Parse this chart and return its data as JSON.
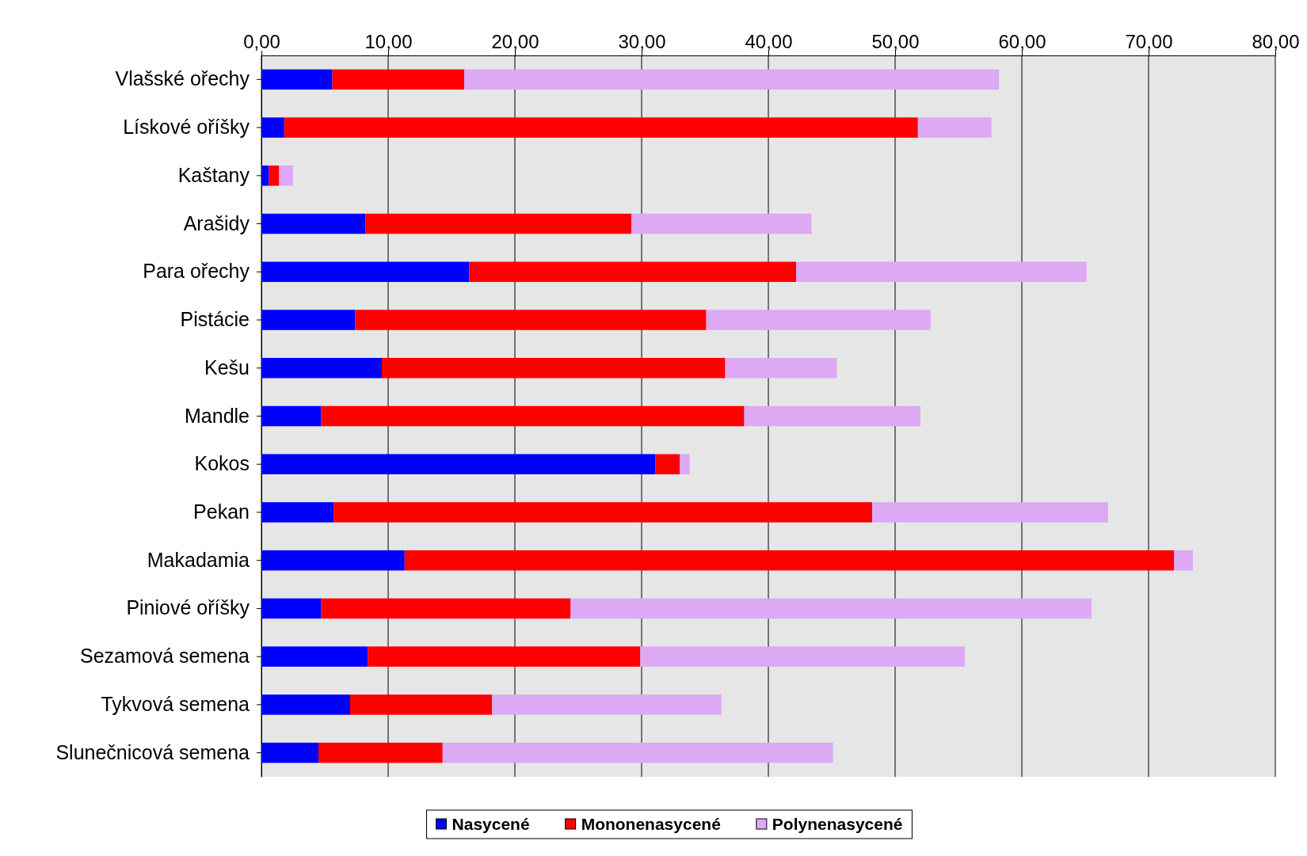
{
  "chart_data": {
    "type": "bar",
    "orientation": "horizontal",
    "stacked": true,
    "categories": [
      "Vlašské ořechy",
      "Lískové oříšky",
      "Kaštany",
      "Arašidy",
      "Para ořechy",
      "Pistácie",
      "Kešu",
      "Mandle",
      "Kokos",
      "Pekan",
      "Makadamia",
      "Piniové oříšky",
      "Sezamová semena",
      "Tykvová semena",
      "Slunečnicová semena"
    ],
    "series": [
      {
        "name": "Nasycené",
        "color": "#0000ff",
        "values": [
          5.6,
          1.8,
          0.6,
          8.2,
          16.4,
          7.4,
          9.5,
          4.7,
          31.1,
          5.7,
          11.3,
          4.7,
          8.4,
          7.0,
          4.5
        ]
      },
      {
        "name": "Mononenasycené",
        "color": "#ff0000",
        "values": [
          10.4,
          50.0,
          0.8,
          21.0,
          25.8,
          27.7,
          27.1,
          33.4,
          1.9,
          42.5,
          60.7,
          19.7,
          21.5,
          11.2,
          9.8
        ]
      },
      {
        "name": "Polynenasycené",
        "color": "#dda8f4",
        "values": [
          42.2,
          5.8,
          1.1,
          14.2,
          22.9,
          17.7,
          8.8,
          13.9,
          0.8,
          18.6,
          1.5,
          41.1,
          25.6,
          18.1,
          30.8
        ]
      }
    ],
    "xlim": [
      0,
      80
    ],
    "xticks": [
      {
        "value": 0,
        "label": "0,00"
      },
      {
        "value": 10,
        "label": "10,00"
      },
      {
        "value": 20,
        "label": "20,00"
      },
      {
        "value": 30,
        "label": "30,00"
      },
      {
        "value": 40,
        "label": "40,00"
      },
      {
        "value": 50,
        "label": "50,00"
      },
      {
        "value": 60,
        "label": "60,00"
      },
      {
        "value": 70,
        "label": "70,00"
      },
      {
        "value": 80,
        "label": "80,00"
      }
    ],
    "grid": "x",
    "legend": "bottom"
  }
}
